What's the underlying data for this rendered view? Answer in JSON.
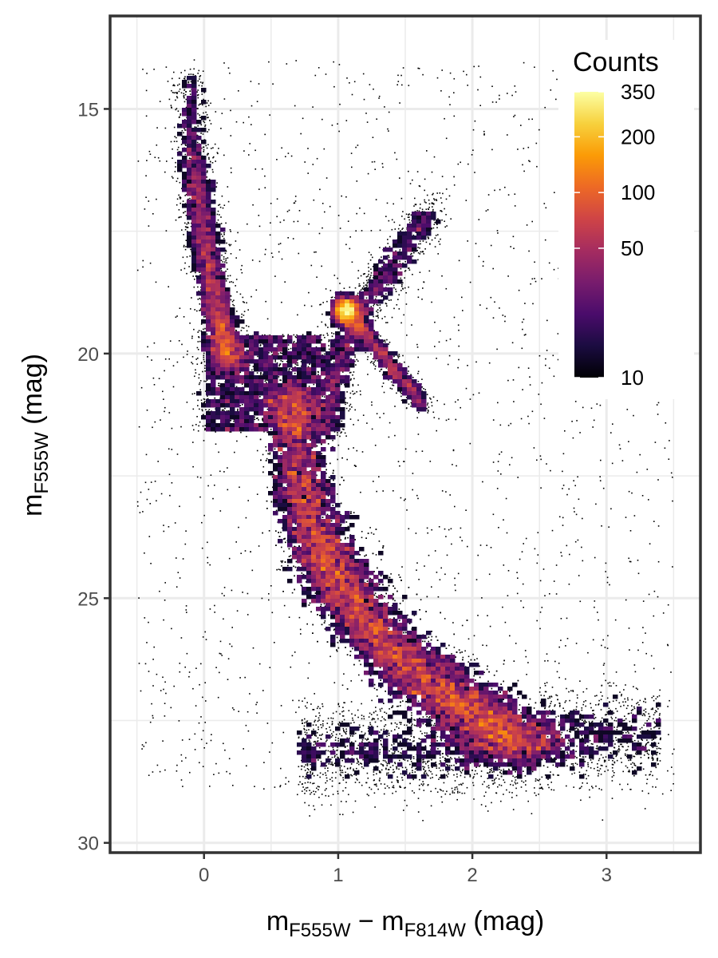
{
  "chart_data": {
    "type": "heatmap",
    "subtype": "2d-density scatter (Hess diagram)",
    "title": "",
    "xlabel": {
      "base": "m",
      "sub1": "F555W",
      "mid": " − m",
      "sub2": "F814W",
      "unit": " (mag)"
    },
    "ylabel": {
      "base": "m",
      "sub": "F555W",
      "unit": " (mag)"
    },
    "x_range": [
      -0.7,
      3.7
    ],
    "y_range": [
      30.2,
      13.1
    ],
    "y_reversed": true,
    "x_ticks": [
      0,
      1,
      2,
      3
    ],
    "x_tick_labels": [
      "0",
      "1",
      "2",
      "3"
    ],
    "y_ticks": [
      15,
      20,
      25,
      30
    ],
    "y_tick_labels": [
      "15",
      "20",
      "25",
      "30"
    ],
    "grid": true,
    "legend": {
      "title": "Counts",
      "position": "top-right",
      "scale": "log",
      "range": [
        10,
        350
      ],
      "ticks": [
        10,
        50,
        100,
        200,
        350
      ],
      "tick_labels": [
        "10",
        "50",
        "100",
        "200",
        "350"
      ],
      "colors": [
        "#000004",
        "#1b0c41",
        "#4a0c6b",
        "#781c6d",
        "#a52c60",
        "#cf4446",
        "#ed6925",
        "#fb9b06",
        "#f7d13d",
        "#fcffa4"
      ]
    },
    "features": {
      "main_sequence_ridge": [
        {
          "x": 0.55,
          "y": 20.8
        },
        {
          "x": 0.62,
          "y": 22.5
        },
        {
          "x": 0.75,
          "y": 23.8
        },
        {
          "x": 0.9,
          "y": 24.7
        },
        {
          "x": 1.15,
          "y": 25.6
        },
        {
          "x": 1.45,
          "y": 26.4
        },
        {
          "x": 1.75,
          "y": 27.0
        },
        {
          "x": 2.05,
          "y": 27.6
        },
        {
          "x": 2.3,
          "y": 28.1
        }
      ],
      "red_clump": {
        "x": 1.05,
        "y": 19.1
      },
      "giant_branch": [
        {
          "x": 0.92,
          "y": 21.6
        },
        {
          "x": 1.0,
          "y": 20.3
        },
        {
          "x": 1.15,
          "y": 19.2
        },
        {
          "x": 1.4,
          "y": 18.2
        },
        {
          "x": 1.7,
          "y": 17.0
        }
      ],
      "upper_blue_plume": [
        {
          "x": -0.15,
          "y": 14.2
        },
        {
          "x": -0.12,
          "y": 16.0
        },
        {
          "x": -0.05,
          "y": 17.5
        },
        {
          "x": 0.05,
          "y": 19.0
        },
        {
          "x": 0.15,
          "y": 20.2
        }
      ]
    }
  }
}
